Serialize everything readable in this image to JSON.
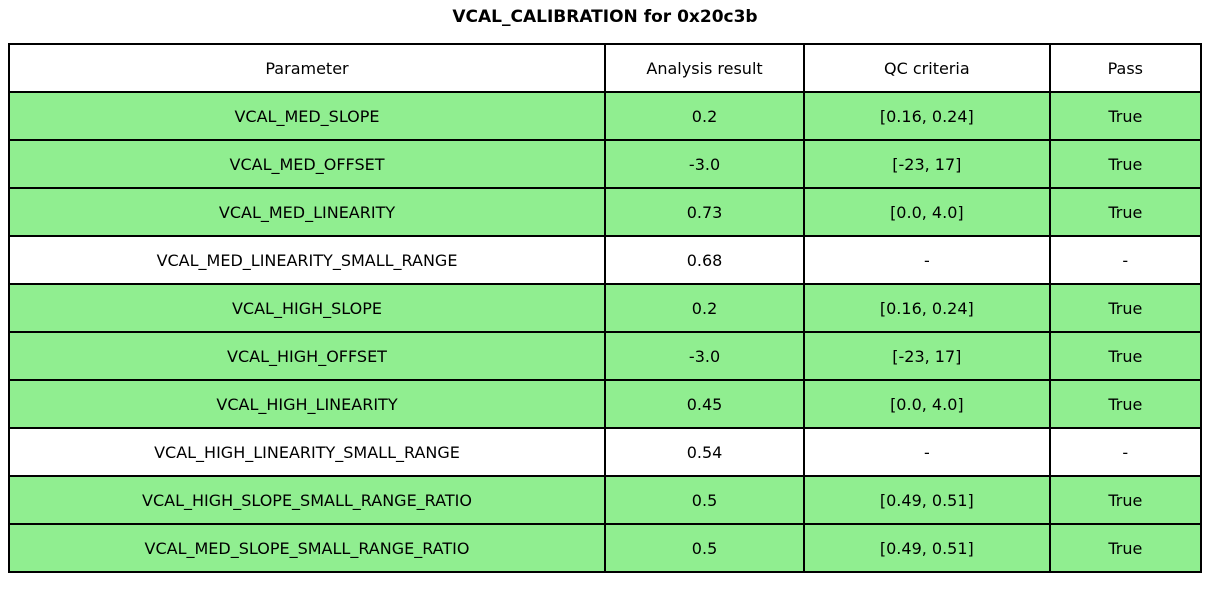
{
  "chart_data": {
    "type": "table",
    "title": "VCAL_CALIBRATION for 0x20c3b",
    "columns": [
      "Parameter",
      "Analysis result",
      "QC criteria",
      "Pass"
    ],
    "rows": [
      {
        "parameter": "VCAL_MED_SLOPE",
        "result": "0.2",
        "criteria": "[0.16, 0.24]",
        "pass": "True",
        "status": "pass"
      },
      {
        "parameter": "VCAL_MED_OFFSET",
        "result": "-3.0",
        "criteria": "[-23, 17]",
        "pass": "True",
        "status": "pass"
      },
      {
        "parameter": "VCAL_MED_LINEARITY",
        "result": "0.73",
        "criteria": "[0.0, 4.0]",
        "pass": "True",
        "status": "pass"
      },
      {
        "parameter": "VCAL_MED_LINEARITY_SMALL_RANGE",
        "result": "0.68",
        "criteria": "-",
        "pass": "-",
        "status": "na"
      },
      {
        "parameter": "VCAL_HIGH_SLOPE",
        "result": "0.2",
        "criteria": "[0.16, 0.24]",
        "pass": "True",
        "status": "pass"
      },
      {
        "parameter": "VCAL_HIGH_OFFSET",
        "result": "-3.0",
        "criteria": "[-23, 17]",
        "pass": "True",
        "status": "pass"
      },
      {
        "parameter": "VCAL_HIGH_LINEARITY",
        "result": "0.45",
        "criteria": "[0.0, 4.0]",
        "pass": "True",
        "status": "pass"
      },
      {
        "parameter": "VCAL_HIGH_LINEARITY_SMALL_RANGE",
        "result": "0.54",
        "criteria": "-",
        "pass": "-",
        "status": "na"
      },
      {
        "parameter": "VCAL_HIGH_SLOPE_SMALL_RANGE_RATIO",
        "result": "0.5",
        "criteria": "[0.49, 0.51]",
        "pass": "True",
        "status": "pass"
      },
      {
        "parameter": "VCAL_MED_SLOPE_SMALL_RANGE_RATIO",
        "result": "0.5",
        "criteria": "[0.49, 0.51]",
        "pass": "True",
        "status": "pass"
      }
    ],
    "layout": {
      "legend": "none",
      "grid": "full-borders",
      "pass_row_color": "#90ee90",
      "na_row_color": "#ffffff",
      "border_color": "#000000"
    }
  }
}
